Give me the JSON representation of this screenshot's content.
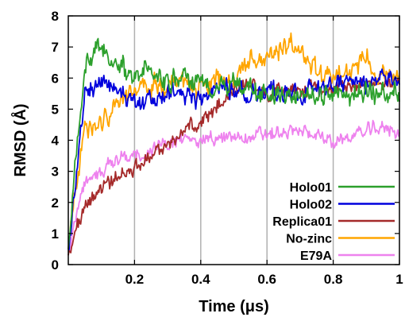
{
  "chart_data": {
    "type": "line",
    "xlabel": "Time (μs)",
    "ylabel": "RMSD (Å)",
    "xlim": [
      0,
      1
    ],
    "ylim": [
      0,
      8
    ],
    "x_ticks": [
      0.2,
      0.4,
      0.6,
      0.8,
      1
    ],
    "x_tick_labels": [
      "0.2",
      "0.4",
      "0.6",
      "0.8",
      "1"
    ],
    "y_ticks": [
      0,
      1,
      2,
      3,
      4,
      5,
      6,
      7,
      8
    ],
    "y_tick_labels": [
      "0",
      "1",
      "2",
      "3",
      "4",
      "5",
      "6",
      "7",
      "8"
    ],
    "grid": "vertical lines at x ticks",
    "legend_position": "bottom-right",
    "x": [
      0.0,
      0.05,
      0.1,
      0.15,
      0.2,
      0.25,
      0.3,
      0.35,
      0.4,
      0.45,
      0.5,
      0.55,
      0.6,
      0.65,
      0.7,
      0.75,
      0.8,
      0.85,
      0.9,
      0.95,
      1.0
    ],
    "series": [
      {
        "name": "Holo01",
        "color": "#2ca02c",
        "values": [
          0.5,
          6.4,
          6.9,
          6.3,
          6.1,
          6.2,
          5.8,
          6.0,
          5.7,
          5.8,
          5.9,
          5.6,
          5.4,
          5.5,
          5.4,
          5.5,
          5.6,
          5.4,
          5.5,
          5.6,
          5.5
        ]
      },
      {
        "name": "Holo02",
        "color": "#0000dd",
        "values": [
          0.5,
          5.4,
          5.9,
          5.6,
          5.4,
          5.3,
          5.6,
          5.5,
          5.3,
          5.8,
          5.6,
          5.4,
          5.6,
          5.6,
          5.5,
          5.7,
          5.7,
          5.9,
          5.8,
          5.9,
          5.9
        ]
      },
      {
        "name": "Replica01",
        "color": "#a52a2a",
        "values": [
          0.3,
          1.9,
          2.5,
          2.8,
          3.1,
          3.5,
          3.8,
          4.3,
          4.6,
          5.1,
          5.6,
          5.8,
          5.5,
          5.6,
          5.7,
          5.6,
          5.7,
          5.8,
          5.9,
          5.9,
          6.0
        ]
      },
      {
        "name": "No-zinc",
        "color": "#ffa500",
        "values": [
          0.5,
          4.6,
          4.5,
          5.3,
          5.6,
          5.7,
          5.8,
          5.9,
          5.7,
          6.0,
          5.8,
          6.5,
          6.6,
          7.1,
          7.0,
          6.2,
          5.9,
          6.2,
          6.7,
          6.0,
          6.2
        ]
      },
      {
        "name": "E79A",
        "color": "#ee82ee",
        "values": [
          0.5,
          2.6,
          3.0,
          3.4,
          3.5,
          3.7,
          3.9,
          4.0,
          4.1,
          4.0,
          4.1,
          4.1,
          4.2,
          4.2,
          4.3,
          4.2,
          3.9,
          4.1,
          4.3,
          4.4,
          4.3
        ]
      }
    ]
  }
}
